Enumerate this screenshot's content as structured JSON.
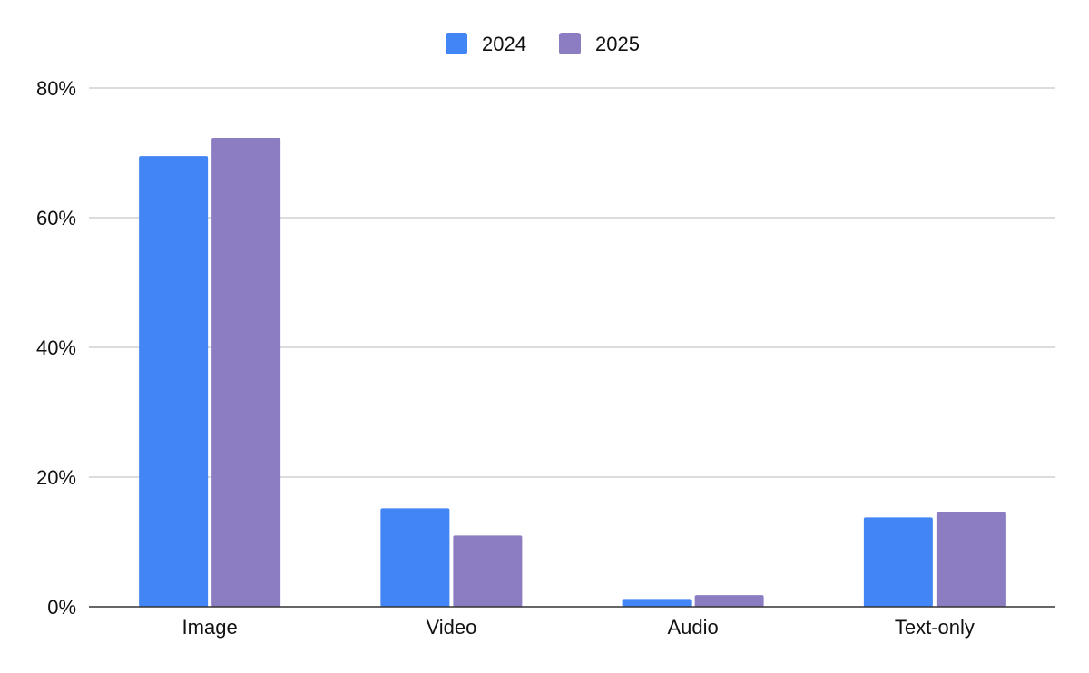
{
  "chart_data": {
    "type": "bar",
    "categories": [
      "Image",
      "Video",
      "Audio",
      "Text-only"
    ],
    "series": [
      {
        "name": "2024",
        "color": "#4285f4",
        "values": [
          69.5,
          15.2,
          1.2,
          13.8
        ]
      },
      {
        "name": "2025",
        "color": "#8c7dc3",
        "values": [
          72.3,
          11.0,
          1.8,
          14.6
        ]
      }
    ],
    "ylim": [
      0,
      80
    ],
    "yticks": [
      0,
      20,
      40,
      60,
      80
    ],
    "ytick_labels": [
      "0%",
      "20%",
      "40%",
      "60%",
      "80%"
    ],
    "grid": true,
    "legend_position": "top-center",
    "title": "",
    "xlabel": "",
    "ylabel": ""
  }
}
